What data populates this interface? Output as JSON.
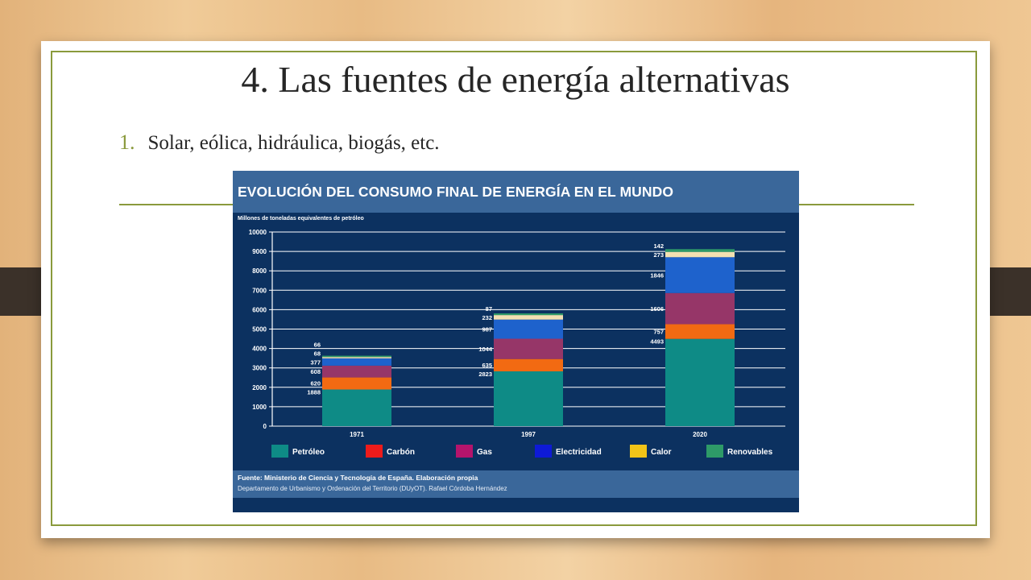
{
  "slide": {
    "title": "4. Las fuentes de energía alternativas",
    "bullet_number": "1.",
    "bullet_text": "Solar, eólica, hidráulica, biogás, etc."
  },
  "colors": {
    "background_wood": "#e9bb85",
    "accent": "#8a9a3c",
    "chart_bg": "#0c3160",
    "chart_band": "#3a679a"
  },
  "chart_data": {
    "type": "bar",
    "stacked": true,
    "title": "EVOLUCIÓN DEL CONSUMO FINAL DE ENERGÍA EN EL MUNDO",
    "ylabel": "Millones de toneladas equivalentes de petróleo",
    "ylim": [
      0,
      10000
    ],
    "yticks": [
      0,
      1000,
      2000,
      3000,
      4000,
      5000,
      6000,
      7000,
      8000,
      9000,
      10000
    ],
    "grid": true,
    "legend_position": "bottom",
    "categories": [
      "1971",
      "1997",
      "2020"
    ],
    "series": [
      {
        "name": "Petróleo",
        "legend_color": "#0e8b86",
        "bar_color": "#0e8b86",
        "values": [
          1888,
          2823,
          4493
        ]
      },
      {
        "name": "Carbón",
        "legend_color": "#ee1b1b",
        "bar_color": "#f26a12",
        "values": [
          620,
          635,
          757
        ]
      },
      {
        "name": "Gas",
        "legend_color": "#b5146c",
        "bar_color": "#963668",
        "values": [
          608,
          1044,
          1606
        ]
      },
      {
        "name": "Electricidad",
        "legend_color": "#0e1ad6",
        "bar_color": "#1e62cc",
        "values": [
          377,
          987,
          1846
        ]
      },
      {
        "name": "Calor",
        "legend_color": "#f2c418",
        "bar_color": "#f2e0b2",
        "values": [
          68,
          232,
          273
        ]
      },
      {
        "name": "Renovables",
        "legend_color": "#2e9a68",
        "bar_color": "#2e9a68",
        "values": [
          66,
          87,
          142
        ]
      }
    ],
    "source": "Fuente: Ministerio de Ciencia y Tecnología de España.  Elaboración propia",
    "credit": "Departamento de Urbanismo y Ordenación del Territorio (DUyOT). Rafael Córdoba Hernández"
  }
}
